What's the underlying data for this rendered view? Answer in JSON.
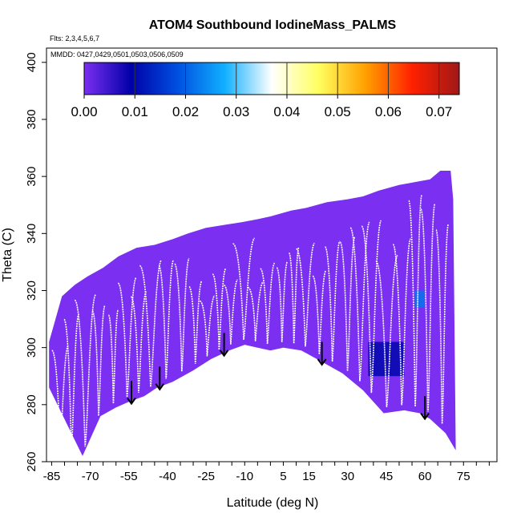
{
  "chart_data": {
    "type": "heatmap",
    "title": "ATOM4 Southbound IodineMass_PALMS",
    "flights_note": "Flts: 2,3,4,5,6,7",
    "dates_note": "MMDD: 0427,0429,0501,0503,0506,0509",
    "xlabel": "Latitude (deg N)",
    "ylabel": "Theta (C)",
    "xlim": [
      -87,
      88
    ],
    "ylim": [
      260,
      405
    ],
    "x_ticks": [
      -85,
      -70,
      -55,
      -40,
      -25,
      -10,
      5,
      15,
      30,
      45,
      60,
      75
    ],
    "y_ticks": [
      260,
      280,
      300,
      320,
      340,
      360,
      380,
      400
    ],
    "colorbar": {
      "ticks": [
        "0.00",
        "0.01",
        "0.02",
        "0.03",
        "0.04",
        "0.05",
        "0.06",
        "0.07"
      ],
      "range": [
        0,
        0.074
      ],
      "colors": [
        "#7b2ff0",
        "#0000a8",
        "#0050e0",
        "#10b0ff",
        "#ffffff",
        "#ffff60",
        "#ffa000",
        "#ff2000",
        "#a01818"
      ]
    },
    "surface_boundary": {
      "latitude": [
        -73,
        -70,
        -66,
        -60,
        -55,
        -49,
        -44,
        -38,
        -30,
        -23,
        -16,
        -10,
        -5,
        0,
        5,
        12,
        20,
        28,
        36,
        44,
        52,
        58,
        62,
        68,
        72
      ],
      "theta": [
        262,
        268,
        276,
        279,
        281,
        283,
        286,
        288,
        292,
        296,
        299,
        301,
        300,
        299,
        300,
        299,
        295,
        291,
        285,
        277,
        278,
        277,
        275,
        270,
        264
      ]
    },
    "top_boundary": {
      "latitude": [
        -86,
        -81,
        -76,
        -71,
        -65,
        -59,
        -52,
        -45,
        -38,
        -32,
        -25,
        -18,
        -11,
        -5,
        0,
        8,
        14,
        22,
        30,
        36,
        42,
        50,
        56,
        62,
        66,
        70,
        71
      ],
      "theta": [
        302,
        318,
        322,
        325,
        328,
        332,
        335,
        336,
        338,
        340,
        342,
        343,
        344,
        345,
        346,
        348,
        349,
        351,
        352,
        353,
        355,
        357,
        358,
        359,
        362,
        362,
        352
      ]
    },
    "enhanced_regions": [
      {
        "lat_range": [
          38,
          52
        ],
        "theta_range": [
          290,
          302
        ],
        "value": 0.01
      },
      {
        "lat_range": [
          56,
          60
        ],
        "theta_range": [
          314,
          320
        ],
        "value": 0.022
      }
    ],
    "arrows_latitude": [
      -54,
      -43,
      -18,
      20,
      60
    ],
    "background_value": 0.0
  }
}
